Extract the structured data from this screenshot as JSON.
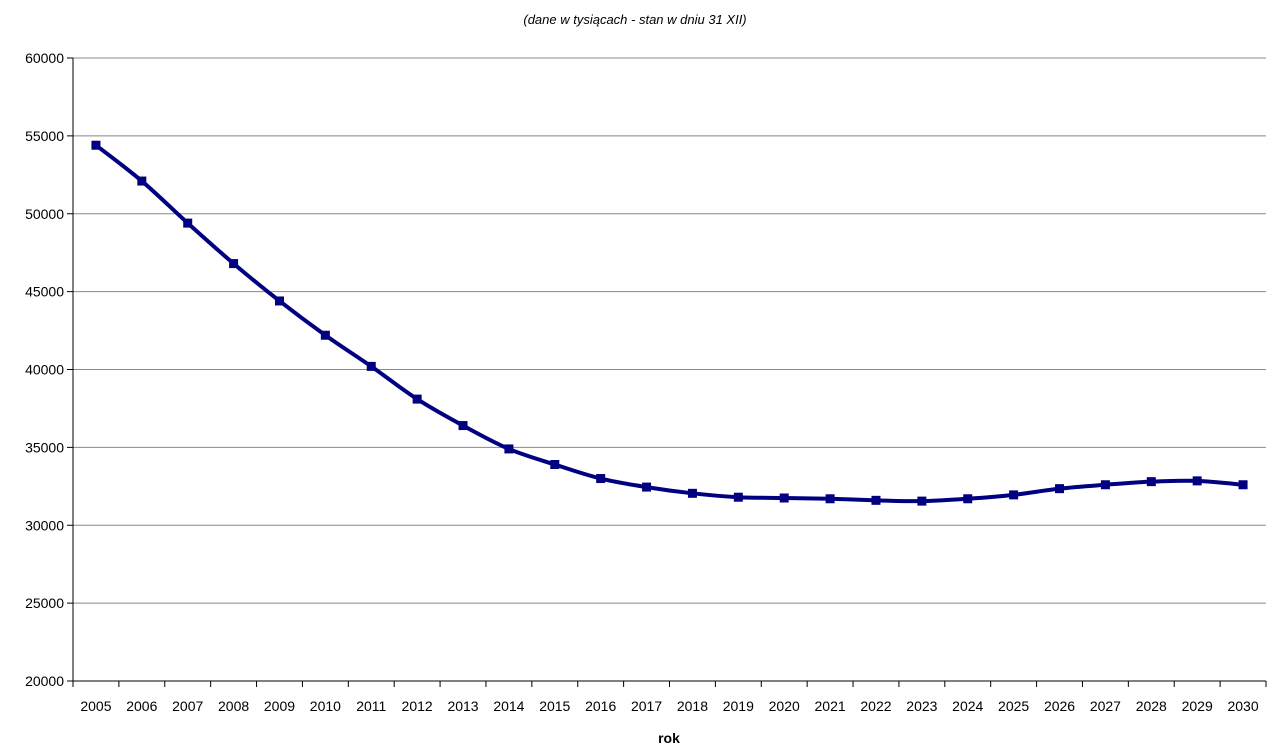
{
  "chart_data": {
    "type": "line",
    "subtitle": "(dane w tysiącach - stan w dniu 31 XII)",
    "xlabel": "rok",
    "ylabel": "",
    "ylim": [
      20000,
      60000
    ],
    "y_ticks": [
      20000,
      25000,
      30000,
      35000,
      40000,
      45000,
      50000,
      55000,
      60000
    ],
    "grid": true,
    "categories": [
      "2005",
      "2006",
      "2007",
      "2008",
      "2009",
      "2010",
      "2011",
      "2012",
      "2013",
      "2014",
      "2015",
      "2016",
      "2017",
      "2018",
      "2019",
      "2020",
      "2021",
      "2022",
      "2023",
      "2024",
      "2025",
      "2026",
      "2027",
      "2028",
      "2029",
      "2030"
    ],
    "series": [
      {
        "color": "#000080",
        "values": [
          54400,
          52100,
          49400,
          46800,
          44400,
          42200,
          40200,
          38100,
          36400,
          34900,
          33900,
          33000,
          32450,
          32050,
          31800,
          31750,
          31700,
          31600,
          31550,
          31700,
          31950,
          32350,
          32600,
          32800,
          32850,
          32600
        ]
      }
    ]
  }
}
